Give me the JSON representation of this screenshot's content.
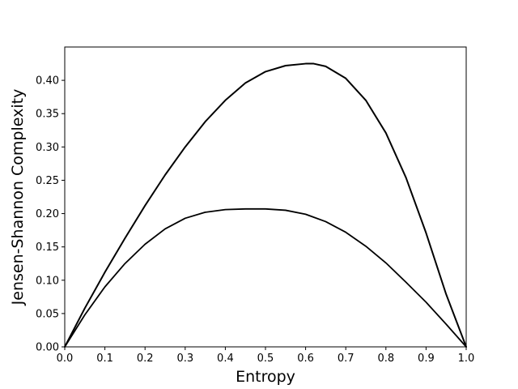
{
  "chart_data": {
    "type": "line",
    "title": "",
    "xlabel": "Entropy",
    "ylabel": "Jensen-Shannon Complexity",
    "xlim": [
      0.0,
      1.0
    ],
    "ylim": [
      0.0,
      0.45
    ],
    "xticks": [
      "0.0",
      "0.1",
      "0.2",
      "0.3",
      "0.4",
      "0.5",
      "0.6",
      "0.7",
      "0.8",
      "0.9",
      "1.0"
    ],
    "yticks": [
      "0.00",
      "0.05",
      "0.10",
      "0.15",
      "0.20",
      "0.25",
      "0.30",
      "0.35",
      "0.40"
    ],
    "grid": false,
    "legend": null,
    "colors": {
      "line": "#000000",
      "axes": "#000000",
      "background": "#ffffff"
    },
    "series": [
      {
        "x": [
          0.0,
          0.05,
          0.1,
          0.15,
          0.2,
          0.25,
          0.3,
          0.35,
          0.4,
          0.45,
          0.5,
          0.55,
          0.6,
          0.62,
          0.65,
          0.7,
          0.75,
          0.8,
          0.85,
          0.9,
          0.95,
          1.0
        ],
        "values": [
          0.0,
          0.058,
          0.112,
          0.163,
          0.212,
          0.258,
          0.3,
          0.338,
          0.37,
          0.396,
          0.413,
          0.422,
          0.425,
          0.425,
          0.421,
          0.403,
          0.37,
          0.321,
          0.254,
          0.171,
          0.079,
          0.0
        ]
      },
      {
        "x": [
          0.0,
          0.05,
          0.1,
          0.15,
          0.2,
          0.25,
          0.3,
          0.35,
          0.4,
          0.45,
          0.48,
          0.5,
          0.55,
          0.6,
          0.65,
          0.7,
          0.75,
          0.8,
          0.85,
          0.9,
          0.95,
          1.0
        ],
        "values": [
          0.0,
          0.048,
          0.09,
          0.125,
          0.154,
          0.177,
          0.193,
          0.202,
          0.206,
          0.207,
          0.207,
          0.207,
          0.205,
          0.199,
          0.188,
          0.172,
          0.151,
          0.126,
          0.097,
          0.067,
          0.034,
          0.0
        ]
      }
    ]
  }
}
